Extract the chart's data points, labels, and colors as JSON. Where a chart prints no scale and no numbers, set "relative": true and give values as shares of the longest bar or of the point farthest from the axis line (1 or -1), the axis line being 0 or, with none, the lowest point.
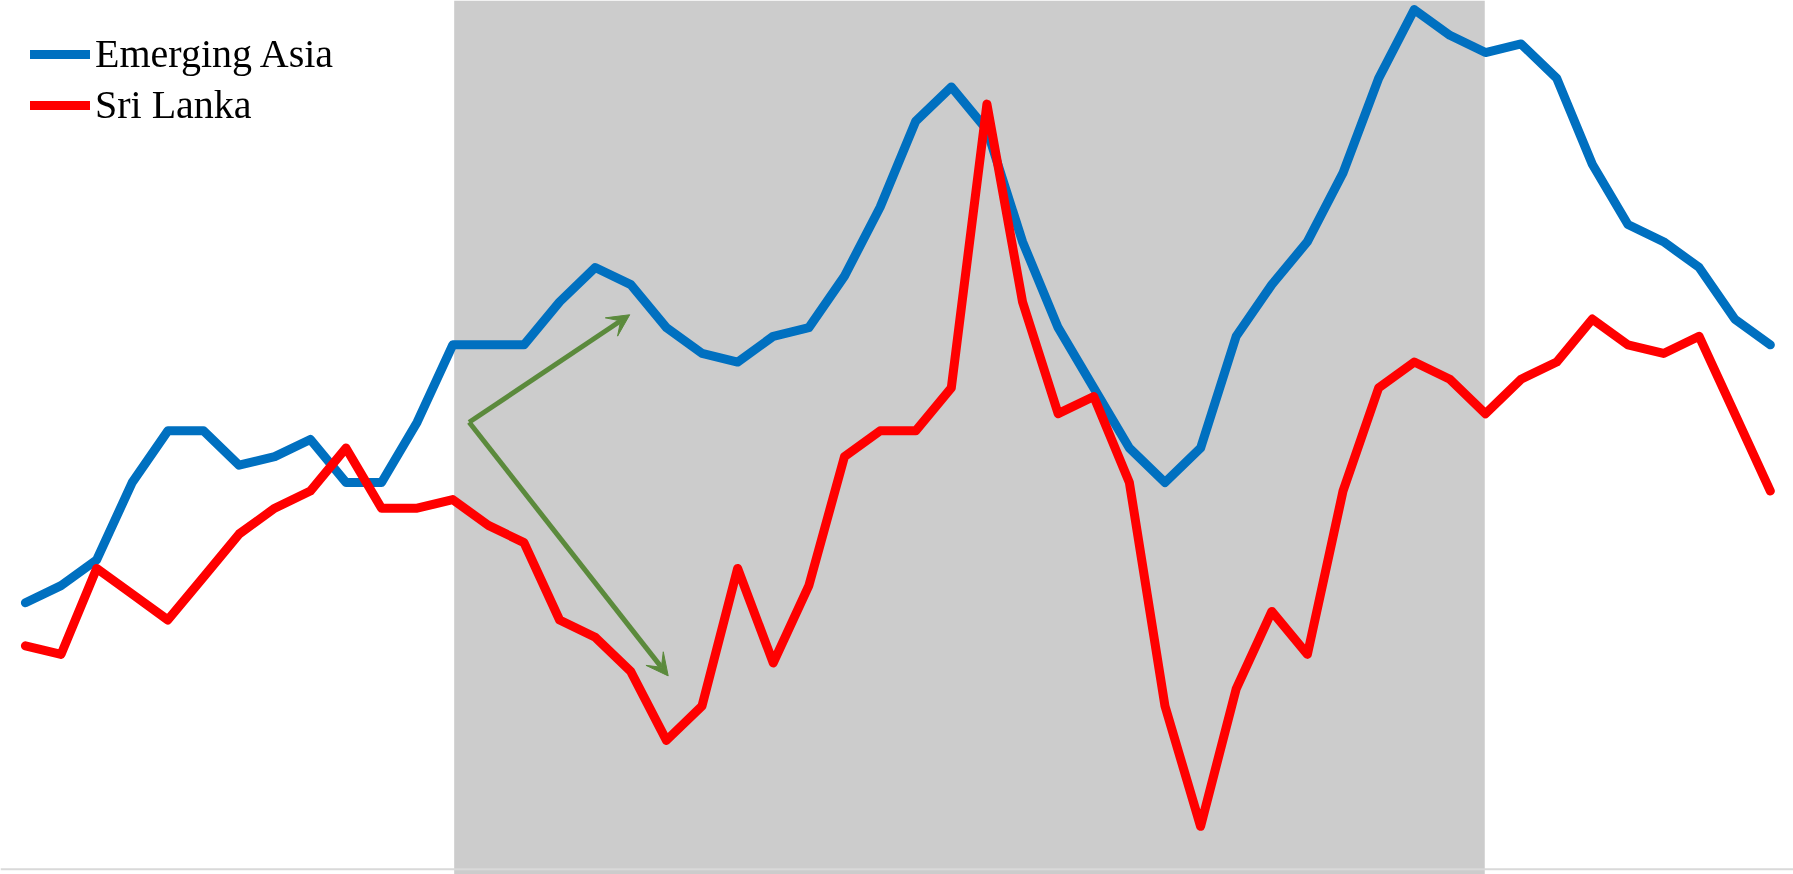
{
  "chart_data": {
    "type": "line",
    "relative": true,
    "legend": "top left",
    "grid": false,
    "line_style": "solid",
    "marker": "none",
    "categories": [
      null,
      null,
      null,
      null,
      null,
      null,
      null,
      null,
      null,
      null,
      null,
      null,
      null,
      null,
      null,
      null,
      null,
      null,
      null,
      null,
      null,
      null,
      null,
      null,
      null,
      null,
      null,
      null,
      null,
      null,
      null,
      null,
      null,
      null,
      null,
      null,
      null,
      null,
      null,
      null,
      null,
      null,
      null,
      null,
      null,
      null,
      null,
      null,
      null,
      null
    ],
    "series": [
      {
        "name": "Emerging Asia",
        "color": "#0070c0",
        "values": [
          0.31,
          0.33,
          0.36,
          0.45,
          0.51,
          0.51,
          0.47,
          0.48,
          0.5,
          0.45,
          0.45,
          0.52,
          0.61,
          0.61,
          0.61,
          0.66,
          0.7,
          0.68,
          0.63,
          0.6,
          0.59,
          0.62,
          0.63,
          0.69,
          0.77,
          0.87,
          0.91,
          0.86,
          0.73,
          0.63,
          0.56,
          0.49,
          0.45,
          0.49,
          0.62,
          0.68,
          0.73,
          0.81,
          0.92,
          1.0,
          0.97,
          0.95,
          0.96,
          0.92,
          0.82,
          0.75,
          0.73,
          0.7,
          0.64,
          0.61
        ]
      },
      {
        "name": "Sri Lanka",
        "color": "#ff0000",
        "values": [
          0.26,
          0.25,
          0.35,
          0.32,
          0.29,
          0.34,
          0.39,
          0.42,
          0.44,
          0.49,
          0.42,
          0.42,
          0.43,
          0.4,
          0.38,
          0.29,
          0.27,
          0.23,
          0.15,
          0.19,
          0.35,
          0.24,
          0.33,
          0.48,
          0.51,
          0.51,
          0.56,
          0.89,
          0.66,
          0.53,
          0.55,
          0.45,
          0.19,
          0.05,
          0.21,
          0.3,
          0.25,
          0.44,
          0.56,
          0.59,
          0.57,
          0.53,
          0.57,
          0.59,
          0.64,
          0.61,
          0.6,
          0.62,
          0.53,
          0.44
        ]
      }
    ]
  }
}
